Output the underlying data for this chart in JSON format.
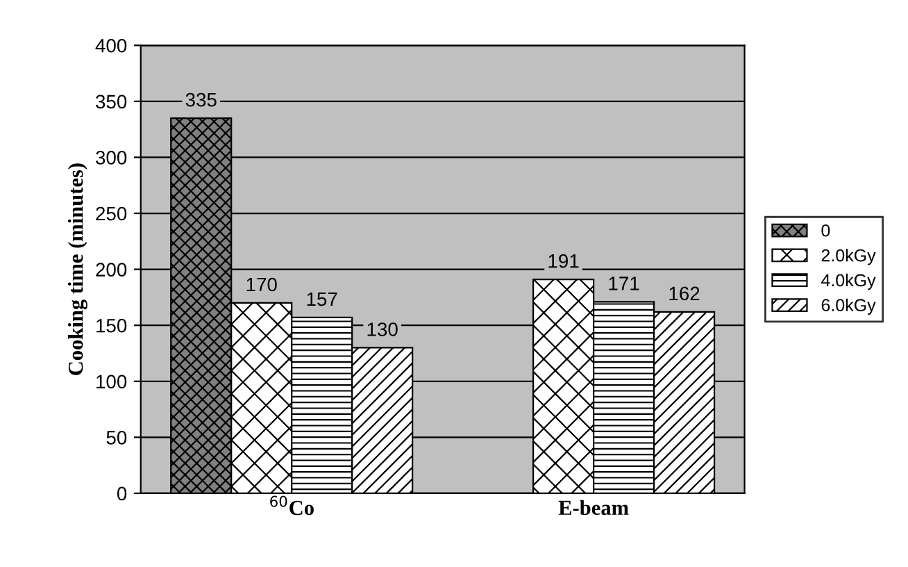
{
  "chart_data": {
    "type": "bar",
    "ylabel": "Cooking time (minutes)",
    "categories": [
      "$^{60}$Co",
      "E-beam"
    ],
    "series": [
      {
        "name": "0",
        "color": "#000000",
        "values": [
          335,
          null
        ]
      },
      {
        "name": "2.0kGy",
        "color": "#000000",
        "values": [
          170,
          191
        ]
      },
      {
        "name": "4.0kGy",
        "color": "#000000",
        "values": [
          157,
          171
        ]
      },
      {
        "name": "6.0kGy",
        "color": "#000000",
        "values": [
          130,
          162
        ]
      }
    ],
    "ylim": [
      0,
      400
    ],
    "yticks": [
      0,
      50,
      100,
      150,
      200,
      250,
      300,
      350,
      400
    ],
    "grid": "y",
    "data_labels": true,
    "legend": "right"
  }
}
